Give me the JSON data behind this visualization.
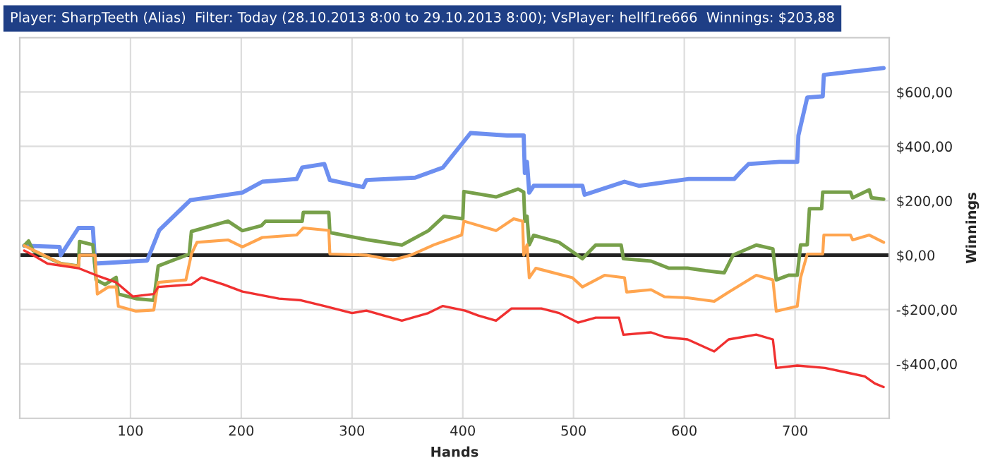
{
  "chart_data": {
    "type": "line",
    "title": "Player: SharpTeeth (Alias)  Filter: Today (28.10.2013 8:00 to 29.10.2013 8:00); VsPlayer: hellf1re666  Winnings: $203,88",
    "xlabel": "Hands",
    "ylabel": "Winnings",
    "xlim": [
      0,
      785
    ],
    "ylim": [
      -600,
      800
    ],
    "xticks": [
      100,
      200,
      300,
      400,
      500,
      600,
      700
    ],
    "yticks": [
      {
        "value": -400,
        "label": "-$400,00"
      },
      {
        "value": -200,
        "label": "-$200,00"
      },
      {
        "value": 0,
        "label": "$0,00"
      },
      {
        "value": 200,
        "label": "$200,00"
      },
      {
        "value": 400,
        "label": "$400,00"
      },
      {
        "value": 600,
        "label": "$600,00"
      }
    ],
    "grid": true,
    "ref_lines": [
      {
        "axis": "y",
        "value": 0,
        "color": "#222222"
      }
    ],
    "series": [
      {
        "color": "#6d8ff0",
        "x": [
          4,
          36,
          37,
          53,
          66,
          68,
          115,
          126,
          154,
          201,
          219,
          250,
          255,
          275,
          280,
          310,
          313,
          357,
          382,
          407,
          440,
          455,
          456,
          458,
          460,
          464,
          508,
          510,
          546,
          559,
          604,
          645,
          650,
          658,
          686,
          702,
          703,
          711,
          725,
          726,
          756,
          780
        ],
        "values": [
          35,
          30,
          0,
          100,
          100,
          -31,
          -20,
          92,
          202,
          230,
          270,
          280,
          322,
          335,
          276,
          250,
          276,
          285,
          322,
          449,
          440,
          440,
          302,
          343,
          230,
          255,
          255,
          222,
          270,
          255,
          280,
          280,
          302,
          335,
          343,
          343,
          440,
          580,
          584,
          663,
          677,
          688
        ]
      },
      {
        "color": "#77a04a",
        "x": [
          4,
          8,
          12,
          37,
          53,
          54,
          66,
          69,
          77,
          87,
          89,
          105,
          121,
          125,
          153,
          155,
          188,
          201,
          218,
          222,
          255,
          256,
          279,
          280,
          313,
          345,
          369,
          383,
          400,
          401,
          430,
          450,
          455,
          456,
          458,
          460,
          464,
          487,
          508,
          520,
          543,
          545,
          570,
          586,
          603,
          619,
          636,
          644,
          665,
          680,
          683,
          694,
          702,
          705,
          711,
          713,
          724,
          725,
          750,
          752,
          767,
          769,
          780
        ],
        "values": [
          35,
          52,
          17,
          -31,
          -40,
          50,
          38,
          -91,
          -108,
          -82,
          -143,
          -160,
          -166,
          -40,
          4,
          87,
          125,
          90,
          108,
          125,
          125,
          157,
          157,
          83,
          57,
          37,
          90,
          143,
          134,
          234,
          214,
          243,
          232,
          125,
          143,
          38,
          73,
          47,
          -13,
          37,
          37,
          -13,
          -22,
          -48,
          -48,
          -57,
          -65,
          0,
          37,
          23,
          -91,
          -74,
          -74,
          38,
          38,
          171,
          171,
          232,
          232,
          211,
          240,
          211,
          206
        ]
      },
      {
        "color": "#ffa54f",
        "x": [
          4,
          37,
          53,
          54,
          68,
          70,
          80,
          87,
          89,
          105,
          121,
          125,
          150,
          155,
          160,
          188,
          201,
          219,
          250,
          256,
          279,
          280,
          313,
          337,
          353,
          374,
          399,
          401,
          430,
          446,
          454,
          455,
          458,
          460,
          466,
          499,
          508,
          528,
          546,
          548,
          570,
          582,
          603,
          627,
          640,
          665,
          680,
          683,
          702,
          705,
          711,
          725,
          726,
          750,
          752,
          767,
          780
        ],
        "values": [
          35,
          -31,
          -40,
          0,
          0,
          -143,
          -117,
          -117,
          -188,
          -206,
          -202,
          -100,
          -91,
          4,
          47,
          56,
          30,
          65,
          74,
          100,
          91,
          4,
          0,
          -18,
          0,
          38,
          74,
          125,
          90,
          134,
          125,
          0,
          38,
          -83,
          -48,
          -83,
          -117,
          -74,
          -83,
          -136,
          -127,
          -153,
          -157,
          -170,
          -136,
          -74,
          -91,
          -206,
          -188,
          -83,
          4,
          4,
          74,
          74,
          56,
          74,
          47
        ]
      },
      {
        "color": "#f03030",
        "x": [
          4,
          12,
          25,
          53,
          69,
          87,
          102,
          121,
          125,
          155,
          164,
          184,
          201,
          234,
          254,
          275,
          300,
          313,
          345,
          369,
          382,
          402,
          414,
          430,
          444,
          471,
          487,
          504,
          520,
          541,
          545,
          570,
          582,
          603,
          627,
          640,
          665,
          680,
          683,
          702,
          727,
          747,
          763,
          772,
          780
        ],
        "values": [
          17,
          0,
          -31,
          -48,
          -74,
          -100,
          -152,
          -143,
          -117,
          -108,
          -82,
          -108,
          -134,
          -160,
          -166,
          -187,
          -213,
          -204,
          -241,
          -213,
          -187,
          -204,
          -222,
          -241,
          -196,
          -196,
          -213,
          -248,
          -230,
          -230,
          -293,
          -284,
          -301,
          -310,
          -354,
          -310,
          -292,
          -310,
          -415,
          -406,
          -415,
          -432,
          -446,
          -472,
          -485
        ]
      }
    ]
  }
}
